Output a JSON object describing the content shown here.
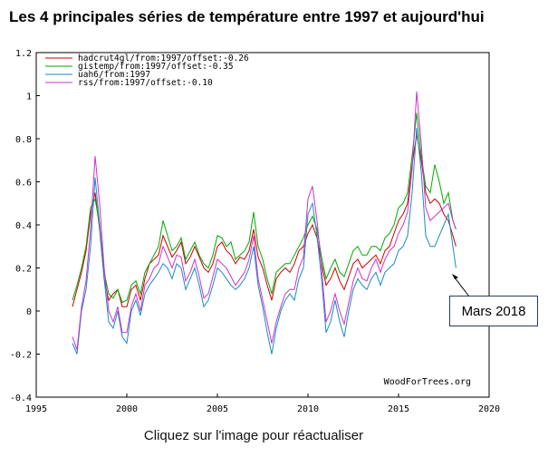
{
  "title": "Les 4 principales séries de température entre 1997 et aujourd'hui",
  "caption": "Cliquez sur l'image pour réactualiser",
  "callout": "Mars 2018",
  "watermark": "WoodForTrees.org",
  "chart_data": {
    "type": "line",
    "xlim": [
      1995,
      2020
    ],
    "ylim": [
      -0.4,
      1.2
    ],
    "xticks": [
      1995,
      2000,
      2005,
      2010,
      2015,
      2020
    ],
    "yticks": [
      -0.4,
      -0.2,
      0,
      0.2,
      0.4,
      0.6,
      0.8,
      1,
      1.2
    ],
    "xtick_labels": [
      "1995",
      "2000",
      "2005",
      "2010",
      "2015",
      "2020"
    ],
    "ytick_labels": [
      "-0.4",
      "-0.2",
      "0",
      "0.2",
      "0.4",
      "0.6",
      "0.8",
      "1",
      "1.2"
    ],
    "grid": false,
    "legend_position": "top-left",
    "xlabel": "",
    "ylabel": "",
    "x": [
      1997.0,
      1997.25,
      1997.5,
      1997.75,
      1998.0,
      1998.25,
      1998.5,
      1998.75,
      1999.0,
      1999.25,
      1999.5,
      1999.75,
      2000.0,
      2000.25,
      2000.5,
      2000.75,
      2001.0,
      2001.25,
      2001.5,
      2001.75,
      2002.0,
      2002.25,
      2002.5,
      2002.75,
      2003.0,
      2003.25,
      2003.5,
      2003.75,
      2004.0,
      2004.25,
      2004.5,
      2004.75,
      2005.0,
      2005.25,
      2005.5,
      2005.75,
      2006.0,
      2006.25,
      2006.5,
      2006.75,
      2007.0,
      2007.25,
      2007.5,
      2007.75,
      2008.0,
      2008.25,
      2008.5,
      2008.75,
      2009.0,
      2009.25,
      2009.5,
      2009.75,
      2010.0,
      2010.25,
      2010.5,
      2010.75,
      2011.0,
      2011.25,
      2011.5,
      2011.75,
      2012.0,
      2012.25,
      2012.5,
      2012.75,
      2013.0,
      2013.25,
      2013.5,
      2013.75,
      2014.0,
      2014.25,
      2014.5,
      2014.75,
      2015.0,
      2015.25,
      2015.5,
      2015.75,
      2016.0,
      2016.25,
      2016.5,
      2016.75,
      2017.0,
      2017.25,
      2017.5,
      2017.75,
      2018.0,
      2018.17
    ],
    "series": [
      {
        "name": "hadcrut4gl/from:1997/offset:-0.26",
        "color": "#cc0000",
        "values": [
          0.02,
          0.1,
          0.18,
          0.28,
          0.45,
          0.55,
          0.38,
          0.15,
          0.05,
          0.08,
          0.1,
          0.02,
          0.02,
          0.1,
          0.12,
          0.05,
          0.15,
          0.22,
          0.24,
          0.26,
          0.35,
          0.3,
          0.25,
          0.28,
          0.32,
          0.22,
          0.25,
          0.3,
          0.25,
          0.2,
          0.18,
          0.22,
          0.3,
          0.32,
          0.28,
          0.26,
          0.22,
          0.25,
          0.24,
          0.28,
          0.38,
          0.25,
          0.2,
          0.12,
          0.05,
          0.15,
          0.18,
          0.2,
          0.18,
          0.22,
          0.28,
          0.3,
          0.36,
          0.4,
          0.34,
          0.22,
          0.12,
          0.15,
          0.2,
          0.14,
          0.1,
          0.16,
          0.22,
          0.24,
          0.2,
          0.22,
          0.24,
          0.26,
          0.22,
          0.28,
          0.3,
          0.36,
          0.42,
          0.45,
          0.5,
          0.68,
          0.82,
          0.7,
          0.55,
          0.5,
          0.52,
          0.5,
          0.45,
          0.42,
          0.35,
          0.3
        ]
      },
      {
        "name": "gistemp/from:1997/offset:-0.35",
        "color": "#00aa00",
        "values": [
          0.05,
          0.12,
          0.2,
          0.3,
          0.48,
          0.52,
          0.4,
          0.18,
          0.08,
          0.06,
          0.1,
          0.04,
          0.05,
          0.12,
          0.14,
          0.08,
          0.18,
          0.22,
          0.26,
          0.3,
          0.42,
          0.35,
          0.28,
          0.3,
          0.34,
          0.24,
          0.28,
          0.32,
          0.26,
          0.22,
          0.2,
          0.26,
          0.35,
          0.34,
          0.3,
          0.32,
          0.24,
          0.26,
          0.28,
          0.32,
          0.46,
          0.3,
          0.24,
          0.15,
          0.08,
          0.18,
          0.2,
          0.22,
          0.22,
          0.26,
          0.3,
          0.34,
          0.4,
          0.44,
          0.38,
          0.25,
          0.15,
          0.2,
          0.24,
          0.18,
          0.16,
          0.22,
          0.28,
          0.3,
          0.26,
          0.26,
          0.3,
          0.3,
          0.28,
          0.34,
          0.36,
          0.4,
          0.48,
          0.5,
          0.55,
          0.72,
          0.92,
          0.72,
          0.58,
          0.55,
          0.68,
          0.6,
          0.5,
          0.55,
          0.42,
          0.38
        ]
      },
      {
        "name": "uah6/from:1997",
        "color": "#1a8ac6",
        "values": [
          -0.15,
          -0.2,
          0.0,
          0.1,
          0.3,
          0.62,
          0.4,
          0.15,
          -0.05,
          -0.08,
          0.0,
          -0.12,
          -0.15,
          0.0,
          0.05,
          -0.02,
          0.08,
          0.12,
          0.15,
          0.18,
          0.22,
          0.2,
          0.15,
          0.22,
          0.2,
          0.1,
          0.15,
          0.2,
          0.12,
          0.02,
          0.05,
          0.12,
          0.2,
          0.18,
          0.15,
          0.12,
          0.1,
          0.12,
          0.15,
          0.2,
          0.3,
          0.12,
          0.02,
          -0.1,
          -0.2,
          -0.08,
          0.0,
          0.05,
          0.08,
          0.05,
          0.15,
          0.2,
          0.45,
          0.5,
          0.35,
          0.15,
          -0.1,
          -0.05,
          0.05,
          -0.05,
          -0.12,
          0.0,
          0.1,
          0.15,
          0.12,
          0.1,
          0.15,
          0.18,
          0.12,
          0.18,
          0.2,
          0.22,
          0.28,
          0.3,
          0.35,
          0.55,
          0.85,
          0.65,
          0.35,
          0.3,
          0.3,
          0.35,
          0.4,
          0.45,
          0.3,
          0.2
        ]
      },
      {
        "name": "rss/from:1997/offset:-0.10",
        "color": "#cc33cc",
        "values": [
          -0.12,
          -0.18,
          0.02,
          0.14,
          0.38,
          0.72,
          0.5,
          0.2,
          0.0,
          -0.05,
          0.02,
          -0.1,
          -0.1,
          0.02,
          0.08,
          0.0,
          0.12,
          0.15,
          0.2,
          0.22,
          0.3,
          0.25,
          0.2,
          0.26,
          0.25,
          0.14,
          0.18,
          0.24,
          0.16,
          0.06,
          0.08,
          0.16,
          0.24,
          0.22,
          0.2,
          0.16,
          0.12,
          0.15,
          0.18,
          0.24,
          0.35,
          0.15,
          0.05,
          -0.05,
          -0.15,
          -0.05,
          0.02,
          0.08,
          0.1,
          0.1,
          0.2,
          0.25,
          0.52,
          0.58,
          0.42,
          0.2,
          -0.05,
          0.0,
          0.08,
          0.0,
          -0.06,
          0.04,
          0.14,
          0.2,
          0.15,
          0.14,
          0.2,
          0.24,
          0.18,
          0.24,
          0.28,
          0.3,
          0.36,
          0.4,
          0.46,
          0.66,
          1.02,
          0.78,
          0.48,
          0.42,
          0.44,
          0.46,
          0.48,
          0.5,
          0.42,
          0.38
        ]
      }
    ]
  }
}
